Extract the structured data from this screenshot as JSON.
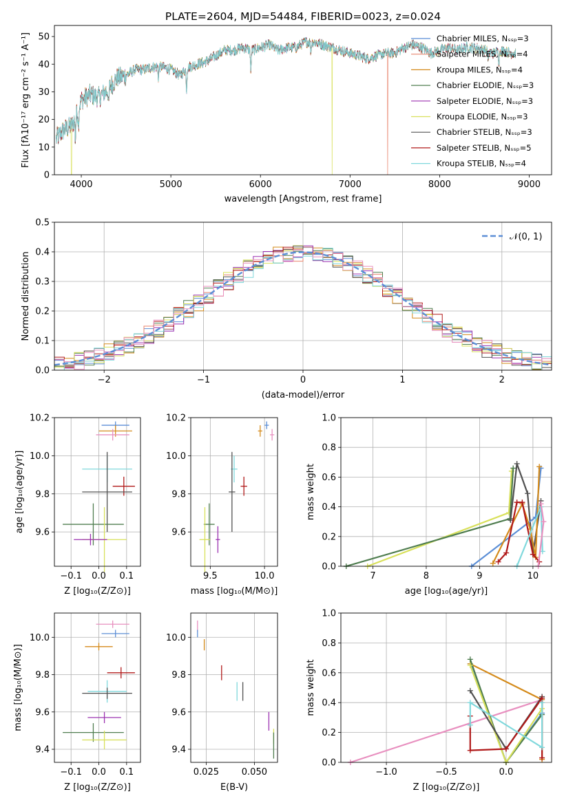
{
  "title": "PLATE=2604, MJD=54484, FIBERID=0023, z=0.024",
  "chart_data": [
    {
      "id": "spectrum",
      "type": "line",
      "xlabel": "wavelength [Angstrom, rest frame]",
      "ylabel": "Flux [fλ10⁻¹⁷ erg cm⁻² s⁻¹ A⁻¹]",
      "xlim": [
        3700,
        9250
      ],
      "ylim": [
        0,
        54
      ],
      "xticks": [
        "4000",
        "5000",
        "6000",
        "7000",
        "8000",
        "9000"
      ],
      "yticks": [
        "0",
        "10",
        "20",
        "30",
        "40",
        "50"
      ],
      "grid": false,
      "legend": "upper right",
      "continuum": {
        "x": [
          3720,
          3800,
          3850,
          3900,
          3950,
          4000,
          4100,
          4200,
          4300,
          4400,
          4500,
          4600,
          4700,
          4800,
          4900,
          5000,
          5100,
          5200,
          5300,
          5400,
          5500,
          5600,
          5700,
          5800,
          5900,
          6000,
          6100,
          6200,
          6300,
          6400,
          6500,
          6600,
          6700,
          6800,
          6900,
          7000,
          7100,
          7200,
          7300,
          7400,
          7500,
          7600,
          7700,
          7800,
          7900,
          8000,
          8100,
          8200,
          8300,
          8400,
          8500,
          8600,
          8700,
          8800,
          8850
        ],
        "y": [
          13,
          16,
          17,
          18,
          22,
          27,
          29,
          28,
          31,
          35,
          36,
          38,
          38,
          39,
          39,
          38,
          36,
          39,
          40,
          41,
          43,
          45,
          45,
          46,
          45,
          46,
          47,
          45,
          46,
          46,
          48,
          48,
          47,
          46,
          45,
          44,
          43,
          42,
          43,
          44,
          44,
          46,
          47,
          46,
          44,
          45,
          46,
          45,
          46,
          46,
          45,
          44,
          45,
          44,
          44
        ]
      },
      "absorption_lines": [
        {
          "x": 3934,
          "depth": 8
        },
        {
          "x": 3969,
          "depth": 6
        },
        {
          "x": 4305,
          "depth": 7
        },
        {
          "x": 4861,
          "depth": 4
        },
        {
          "x": 5175,
          "depth": 8
        },
        {
          "x": 5893,
          "depth": 8
        },
        {
          "x": 6563,
          "depth": 4
        },
        {
          "x": 8542,
          "depth": 4
        },
        {
          "x": 8662,
          "depth": 4
        }
      ],
      "drops": [
        {
          "series": "Kroupa ELODIE",
          "x": 3890
        },
        {
          "series": "Kroupa ELODIE",
          "x": 6800
        },
        {
          "series": "Salpeter MILES",
          "x": 7420
        }
      ],
      "series": [
        {
          "name": "Chabrier MILES, Nₛₛₚ=3",
          "color": "#5b8ed6"
        },
        {
          "name": "Salpeter MILES, Nₛₛₚ=4",
          "color": "#e8836b"
        },
        {
          "name": "Kroupa MILES, Nₛₛₚ=4",
          "color": "#d48a1a"
        },
        {
          "name": "Chabrier ELODIE, Nₛₛₚ=3",
          "color": "#4f7d4f"
        },
        {
          "name": "Salpeter ELODIE, Nₛₛₚ=3",
          "color": "#9b30b0"
        },
        {
          "name": "Kroupa ELODIE, Nₛₛₚ=3",
          "color": "#d8e05a"
        },
        {
          "name": "Chabrier STELIB, Nₛₛₚ=3",
          "color": "#505050"
        },
        {
          "name": "Salpeter STELIB, Nₛₛₚ=5",
          "color": "#b01818"
        },
        {
          "name": "Kroupa STELIB, Nₛₛₚ=4",
          "color": "#7fd8dc"
        }
      ]
    },
    {
      "id": "residuals",
      "type": "histogram",
      "xlabel": "(data-model)/error",
      "ylabel": "Normed distribution",
      "xlim": [
        -2.5,
        2.5
      ],
      "ylim": [
        0,
        0.5
      ],
      "xticks": [
        "−2",
        "−1",
        "0",
        "1",
        "2"
      ],
      "yticks": [
        "0.0",
        "0.1",
        "0.2",
        "0.3",
        "0.4",
        "0.5"
      ],
      "grid": true,
      "legend": "upper right",
      "gaussian_label": "𝒩(0, 1)",
      "gaussian_color": "#5b8ed6",
      "bin_width": 0.1,
      "colors": [
        "#5b8ed6",
        "#e8836b",
        "#d48a1a",
        "#4f7d4f",
        "#9b30b0",
        "#d8e05a",
        "#505050",
        "#b01818",
        "#7fd8dc",
        "#e88fbf"
      ]
    },
    {
      "id": "age-vs-Z",
      "type": "scatter",
      "xlabel": "Z [log₁₀(Z/Z⊙)]",
      "ylabel": "age  [log₁₀(age/yr)]",
      "xlim": [
        -0.16,
        0.15
      ],
      "ylim": [
        9.42,
        10.2
      ],
      "xticks": [
        "−0.1",
        "0.0",
        "0.1"
      ],
      "xtick_values": [
        -0.1,
        0.0,
        0.1
      ],
      "yticks": [
        "9.6",
        "9.8",
        "10.0",
        "10.2"
      ],
      "ytick_values": [
        9.6,
        9.8,
        10.0,
        10.2
      ],
      "grid": true,
      "points": [
        {
          "x": 0.06,
          "y": 10.16,
          "xerr": 0.05,
          "yerr": 0.02,
          "color": "#5b8ed6"
        },
        {
          "x": 0.06,
          "y": 10.13,
          "xerr": 0.06,
          "yerr": 0.03,
          "color": "#d48a1a"
        },
        {
          "x": 0.05,
          "y": 10.11,
          "xerr": 0.06,
          "yerr": 0.03,
          "color": "#e88fbf"
        },
        {
          "x": 0.03,
          "y": 9.93,
          "xerr": 0.09,
          "yerr": 0.07,
          "color": "#7fd8dc"
        },
        {
          "x": 0.09,
          "y": 9.84,
          "xerr": 0.04,
          "yerr": 0.05,
          "color": "#b01818"
        },
        {
          "x": 0.03,
          "y": 9.81,
          "xerr": 0.09,
          "yerr": 0.21,
          "color": "#505050"
        },
        {
          "x": -0.02,
          "y": 9.64,
          "xerr": 0.11,
          "yerr": 0.11,
          "color": "#4f7d4f"
        },
        {
          "x": 0.02,
          "y": 9.56,
          "xerr": 0.08,
          "yerr": 0.17,
          "color": "#d8e05a"
        },
        {
          "x": -0.03,
          "y": 9.56,
          "xerr": 0.06,
          "yerr": 0.03,
          "color": "#9b30b0"
        }
      ]
    },
    {
      "id": "age-vs-mass",
      "type": "scatter",
      "xlabel": "mass [log₁₀(M/M⊙)]",
      "ylabel": "",
      "xlim": [
        9.32,
        10.12
      ],
      "ylim": [
        9.42,
        10.2
      ],
      "xticks": [
        "9.5",
        "10.0"
      ],
      "xtick_values": [
        9.5,
        10.0
      ],
      "yticks": [
        "9.6",
        "9.8",
        "10.0",
        "10.2"
      ],
      "ytick_values": [
        9.6,
        9.8,
        10.0,
        10.2
      ],
      "grid": true,
      "points": [
        {
          "x": 10.02,
          "y": 10.16,
          "xerr": 0.02,
          "yerr": 0.02,
          "color": "#5b8ed6"
        },
        {
          "x": 9.96,
          "y": 10.13,
          "xerr": 0.02,
          "yerr": 0.03,
          "color": "#d48a1a"
        },
        {
          "x": 10.07,
          "y": 10.11,
          "xerr": 0.02,
          "yerr": 0.03,
          "color": "#e88fbf"
        },
        {
          "x": 9.72,
          "y": 9.93,
          "xerr": 0.03,
          "yerr": 0.07,
          "color": "#7fd8dc"
        },
        {
          "x": 9.81,
          "y": 9.84,
          "xerr": 0.03,
          "yerr": 0.05,
          "color": "#b01818"
        },
        {
          "x": 9.7,
          "y": 9.81,
          "xerr": 0.03,
          "yerr": 0.21,
          "color": "#505050"
        },
        {
          "x": 9.49,
          "y": 9.64,
          "xerr": 0.05,
          "yerr": 0.11,
          "color": "#4f7d4f"
        },
        {
          "x": 9.45,
          "y": 9.56,
          "xerr": 0.05,
          "yerr": 0.17,
          "color": "#d8e05a"
        },
        {
          "x": 9.57,
          "y": 9.56,
          "xerr": 0.02,
          "yerr": 0.07,
          "color": "#9b30b0"
        }
      ]
    },
    {
      "id": "mass-weight-vs-age",
      "type": "line",
      "xlabel": "age  [log₁₀(age/yr)]",
      "ylabel": "mass weight",
      "xlim": [
        6.4,
        10.35
      ],
      "ylim": [
        0,
        1.0
      ],
      "xticks": [
        "7",
        "8",
        "9",
        "10"
      ],
      "xtick_values": [
        7,
        8,
        9,
        10
      ],
      "yticks": [
        "0.0",
        "0.2",
        "0.4",
        "0.6",
        "0.8",
        "1.0"
      ],
      "ytick_values": [
        0,
        0.2,
        0.4,
        0.6,
        0.8,
        1.0
      ],
      "grid": true,
      "series": [
        {
          "color": "#d8e05a",
          "x": [
            6.9,
            9.55,
            9.6
          ],
          "y": [
            0.0,
            0.36,
            0.64
          ]
        },
        {
          "color": "#4f7d4f",
          "x": [
            6.5,
            9.57,
            9.63
          ],
          "y": [
            0.0,
            0.32,
            0.66
          ]
        },
        {
          "color": "#505050",
          "x": [
            9.58,
            9.7,
            9.9,
            10.0,
            10.15
          ],
          "y": [
            0.31,
            0.69,
            0.49,
            0.08,
            0.44
          ]
        },
        {
          "color": "#5b8ed6",
          "x": [
            8.85,
            10.05,
            10.15
          ],
          "y": [
            0.0,
            0.33,
            0.66
          ]
        },
        {
          "color": "#d48a1a",
          "x": [
            9.25,
            9.8,
            9.95,
            10.05,
            10.12
          ],
          "y": [
            0.02,
            0.42,
            0.25,
            0.06,
            0.67
          ]
        },
        {
          "color": "#b01818",
          "x": [
            9.35,
            9.5,
            9.7,
            9.8,
            10.0,
            10.12
          ],
          "y": [
            0.03,
            0.09,
            0.43,
            0.43,
            0.08,
            0.03
          ]
        },
        {
          "color": "#7fd8dc",
          "x": [
            9.7,
            10.15,
            10.18
          ],
          "y": [
            0.0,
            0.4,
            0.1
          ]
        },
        {
          "color": "#e88fbf",
          "x": [
            10.1,
            10.2,
            10.15
          ],
          "y": [
            0.0,
            0.3,
            0.42
          ]
        }
      ]
    },
    {
      "id": "mass-vs-Z",
      "type": "scatter",
      "xlabel": "Z [log₁₀(Z/Z⊙)]",
      "ylabel": "mass [log₁₀(M/M⊙)]",
      "xlim": [
        -0.16,
        0.15
      ],
      "ylim": [
        9.33,
        10.13
      ],
      "xticks": [
        "−0.1",
        "0.0",
        "0.1"
      ],
      "xtick_values": [
        -0.1,
        0.0,
        0.1
      ],
      "yticks": [
        "9.4",
        "9.6",
        "9.8",
        "10.0"
      ],
      "ytick_values": [
        9.4,
        9.6,
        9.8,
        10.0
      ],
      "grid": true,
      "points": [
        {
          "x": 0.05,
          "y": 10.07,
          "xerr": 0.06,
          "yerr": 0.02,
          "color": "#e88fbf"
        },
        {
          "x": 0.06,
          "y": 10.02,
          "xerr": 0.05,
          "yerr": 0.02,
          "color": "#5b8ed6"
        },
        {
          "x": 0.0,
          "y": 9.95,
          "xerr": 0.05,
          "yerr": 0.02,
          "color": "#d48a1a"
        },
        {
          "x": 0.08,
          "y": 9.81,
          "xerr": 0.05,
          "yerr": 0.03,
          "color": "#b01818"
        },
        {
          "x": 0.03,
          "y": 9.71,
          "xerr": 0.07,
          "yerr": 0.06,
          "color": "#7fd8dc"
        },
        {
          "x": 0.03,
          "y": 9.7,
          "xerr": 0.09,
          "yerr": 0.03,
          "color": "#505050"
        },
        {
          "x": 0.02,
          "y": 9.57,
          "xerr": 0.06,
          "yerr": 0.03,
          "color": "#9b30b0"
        },
        {
          "x": -0.02,
          "y": 9.49,
          "xerr": 0.11,
          "yerr": 0.05,
          "color": "#4f7d4f"
        },
        {
          "x": 0.02,
          "y": 9.45,
          "xerr": 0.08,
          "yerr": 0.05,
          "color": "#d8e05a"
        }
      ]
    },
    {
      "id": "mass-vs-ebv",
      "type": "scatter",
      "xlabel": "E(B-V)",
      "ylabel": "",
      "xlim": [
        0.017,
        0.062
      ],
      "ylim": [
        9.33,
        10.13
      ],
      "xticks": [
        "0.025",
        "0.050"
      ],
      "xtick_values": [
        0.025,
        0.05
      ],
      "yticks": [
        "9.4",
        "9.6",
        "9.8",
        "10.0"
      ],
      "ytick_values": [
        9.4,
        9.6,
        9.8,
        10.0
      ],
      "grid": true,
      "points": [
        {
          "x": 0.0205,
          "y": 10.06,
          "xerr": 0,
          "yerr": 0.03,
          "color": "#e88fbf"
        },
        {
          "x": 0.0205,
          "y": 10.02,
          "xerr": 0,
          "yerr": 0.02,
          "color": "#5b8ed6"
        },
        {
          "x": 0.024,
          "y": 9.96,
          "xerr": 0,
          "yerr": 0.03,
          "color": "#d48a1a"
        },
        {
          "x": 0.033,
          "y": 9.81,
          "xerr": 0,
          "yerr": 0.04,
          "color": "#b01818"
        },
        {
          "x": 0.041,
          "y": 9.71,
          "xerr": 0,
          "yerr": 0.05,
          "color": "#7fd8dc"
        },
        {
          "x": 0.044,
          "y": 9.71,
          "xerr": 0,
          "yerr": 0.05,
          "color": "#505050"
        },
        {
          "x": 0.0575,
          "y": 9.55,
          "xerr": 0,
          "yerr": 0.05,
          "color": "#9b30b0"
        },
        {
          "x": 0.06,
          "y": 9.47,
          "xerr": 0,
          "yerr": 0.04,
          "color": "#d8e05a"
        },
        {
          "x": 0.06,
          "y": 9.42,
          "xerr": 0,
          "yerr": 0.07,
          "color": "#4f7d4f"
        }
      ]
    },
    {
      "id": "mass-weight-vs-Z",
      "type": "line",
      "xlabel": "Z [log₁₀(Z/Z⊙)]",
      "ylabel": "mass weight",
      "xlim": [
        -1.38,
        0.38
      ],
      "ylim": [
        0,
        1.0
      ],
      "xticks": [
        "−1.0",
        "−0.5",
        "0.0"
      ],
      "xtick_values": [
        -1.0,
        -0.5,
        0.0
      ],
      "yticks": [
        "0.0",
        "0.2",
        "0.4",
        "0.6",
        "0.8",
        "1.0"
      ],
      "ytick_values": [
        0,
        0.2,
        0.4,
        0.6,
        0.8,
        1.0
      ],
      "grid": true,
      "series": [
        {
          "color": "#e88fbf",
          "x": [
            -1.3,
            0.3
          ],
          "y": [
            0.0,
            0.42
          ]
        },
        {
          "color": "#5b8ed6",
          "x": [
            -0.3,
            0.0,
            0.3
          ],
          "y": [
            0.66,
            0.0,
            0.33
          ]
        },
        {
          "color": "#d48a1a",
          "x": [
            -0.3,
            0.3,
            0.3
          ],
          "y": [
            0.66,
            0.42,
            0.02
          ]
        },
        {
          "color": "#4f7d4f",
          "x": [
            -0.3,
            0.0,
            0.3
          ],
          "y": [
            0.69,
            0.0,
            0.32
          ]
        },
        {
          "color": "#d8e05a",
          "x": [
            -0.3,
            0.0,
            0.3
          ],
          "y": [
            0.65,
            0.0,
            0.36
          ]
        },
        {
          "color": "#505050",
          "x": [
            -0.3,
            0.0,
            0.3
          ],
          "y": [
            0.48,
            0.09,
            0.44
          ]
        },
        {
          "color": "#b01818",
          "x": [
            -0.3,
            -0.3,
            0.0,
            0.3,
            0.3
          ],
          "y": [
            0.31,
            0.08,
            0.09,
            0.43,
            0.03
          ]
        },
        {
          "color": "#7fd8dc",
          "x": [
            -0.3,
            -0.3,
            0.3,
            0.3
          ],
          "y": [
            0.25,
            0.4,
            0.1,
            0.4
          ]
        }
      ]
    }
  ]
}
